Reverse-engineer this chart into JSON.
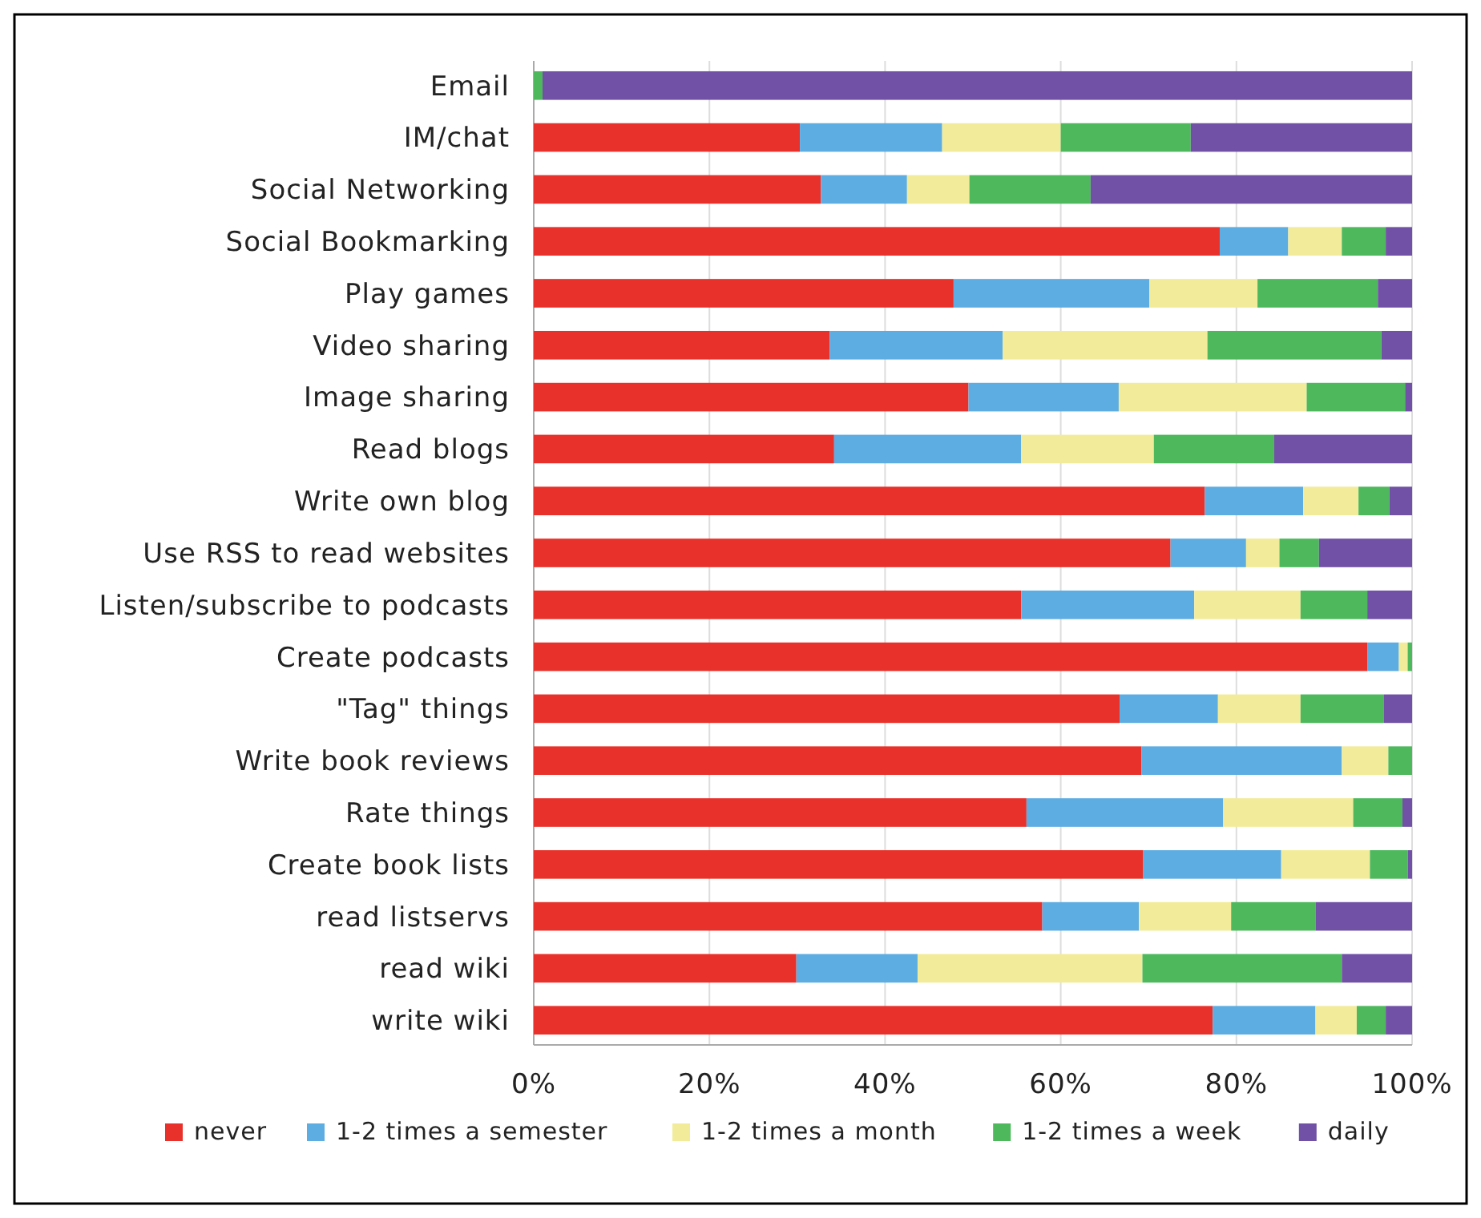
{
  "chart_data": {
    "type": "bar",
    "orientation": "horizontal",
    "stacked": true,
    "categories": [
      "Email",
      "IM/chat",
      "Social Networking",
      "Social Bookmarking",
      "Play games",
      "Video sharing",
      "Image sharing",
      "Read blogs",
      "Write own blog",
      "Use RSS to read websites",
      "Listen/subscribe to podcasts",
      "Create podcasts",
      "\"Tag\" things",
      "Write book reviews",
      "Rate things",
      "Create book lists",
      "read listservs",
      "read wiki",
      "write wiki"
    ],
    "series": [
      {
        "name": "never",
        "color": "#e8312a",
        "values": [
          0,
          30.3,
          32.7,
          78.1,
          47.8,
          33.7,
          49.5,
          34.2,
          76.4,
          72.5,
          55.5,
          94.9,
          66.7,
          69.2,
          56.1,
          69.4,
          57.9,
          29.9,
          77.3
        ]
      },
      {
        "name": "1-2 times a semester",
        "color": "#5dade2",
        "values": [
          0,
          16.2,
          9.8,
          7.8,
          22.3,
          19.7,
          17.1,
          21.3,
          11.2,
          8.6,
          19.7,
          3.6,
          11.2,
          22.8,
          22.4,
          15.7,
          11.0,
          13.8,
          11.7
        ]
      },
      {
        "name": "1-2 times a month",
        "color": "#f2ec9a",
        "values": [
          0,
          13.5,
          7.1,
          6.1,
          12.3,
          23.3,
          21.4,
          15.1,
          6.3,
          3.8,
          12.1,
          1.0,
          9.4,
          5.3,
          14.8,
          10.1,
          10.5,
          25.6,
          4.7
        ]
      },
      {
        "name": "1-2 times a week",
        "color": "#4db85c",
        "values": [
          1,
          14.8,
          13.8,
          5.0,
          13.7,
          19.8,
          11.2,
          13.7,
          3.5,
          4.5,
          7.6,
          0.5,
          9.5,
          2.7,
          5.6,
          4.3,
          9.6,
          22.7,
          3.3
        ]
      },
      {
        "name": "daily",
        "color": "#7151a5",
        "values": [
          99,
          25.2,
          36.6,
          3.0,
          3.9,
          3.5,
          0.8,
          15.7,
          2.6,
          10.6,
          5.1,
          0,
          3.2,
          0,
          1.1,
          0.5,
          11.0,
          8.0,
          3.0
        ]
      }
    ],
    "xlim": [
      0,
      100
    ],
    "xticks": [
      {
        "value": 0,
        "label": "0%"
      },
      {
        "value": 20,
        "label": "20%"
      },
      {
        "value": 40,
        "label": "40%"
      },
      {
        "value": 60,
        "label": "60%"
      },
      {
        "value": 80,
        "label": "80%"
      },
      {
        "value": 100,
        "label": "100%"
      }
    ],
    "grid": "x",
    "legend": "bottom"
  }
}
